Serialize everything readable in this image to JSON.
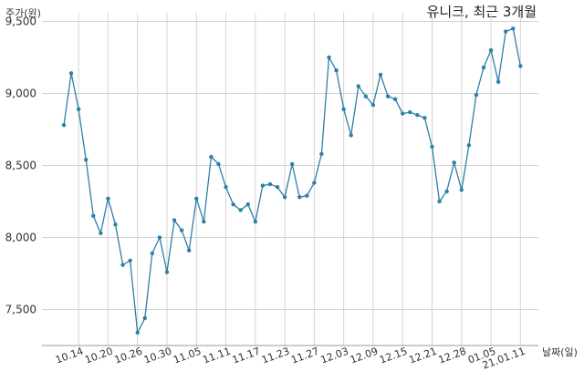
{
  "chart_data": {
    "type": "line",
    "title": "유니크, 최근 3개월",
    "ylabel": "주가(원)",
    "xlabel": "날짜(일)",
    "ylim": [
      7250,
      9560
    ],
    "yticks": [
      7500,
      8000,
      8500,
      9000,
      9500
    ],
    "ytick_labels": [
      "7,500",
      "8,000",
      "8,500",
      "9,000",
      "9,500"
    ],
    "grid": true,
    "color": "#2e7fa8",
    "x_tick_labels": [
      "10.14",
      "10.20",
      "10.26",
      "10.30",
      "11.05",
      "11.11",
      "11.17",
      "11.23",
      "11.27",
      "12.03",
      "12.09",
      "12.15",
      "12.21",
      "12.28",
      "01.05",
      "21.01.11"
    ],
    "x_tick_index": [
      2,
      6,
      10,
      14,
      18,
      22,
      26,
      30,
      34,
      38,
      42,
      46,
      50,
      54,
      58,
      62
    ],
    "series": [
      {
        "name": "",
        "values": [
          8780,
          9140,
          8890,
          8540,
          8150,
          8030,
          8270,
          8090,
          7810,
          7840,
          7340,
          7440,
          7890,
          8000,
          7760,
          8120,
          8050,
          7910,
          8270,
          8110,
          8560,
          8510,
          8350,
          8230,
          8190,
          8230,
          8110,
          8360,
          8370,
          8350,
          8280,
          8510,
          8280,
          8290,
          8380,
          8580,
          9250,
          9160,
          8890,
          8710,
          9050,
          8980,
          8920,
          9130,
          8980,
          8960,
          8860,
          8870,
          8850,
          8830,
          8630,
          8250,
          8320,
          8520,
          8330,
          8640,
          8990,
          9180,
          9300,
          9080,
          9430,
          9450,
          9190
        ]
      }
    ]
  }
}
